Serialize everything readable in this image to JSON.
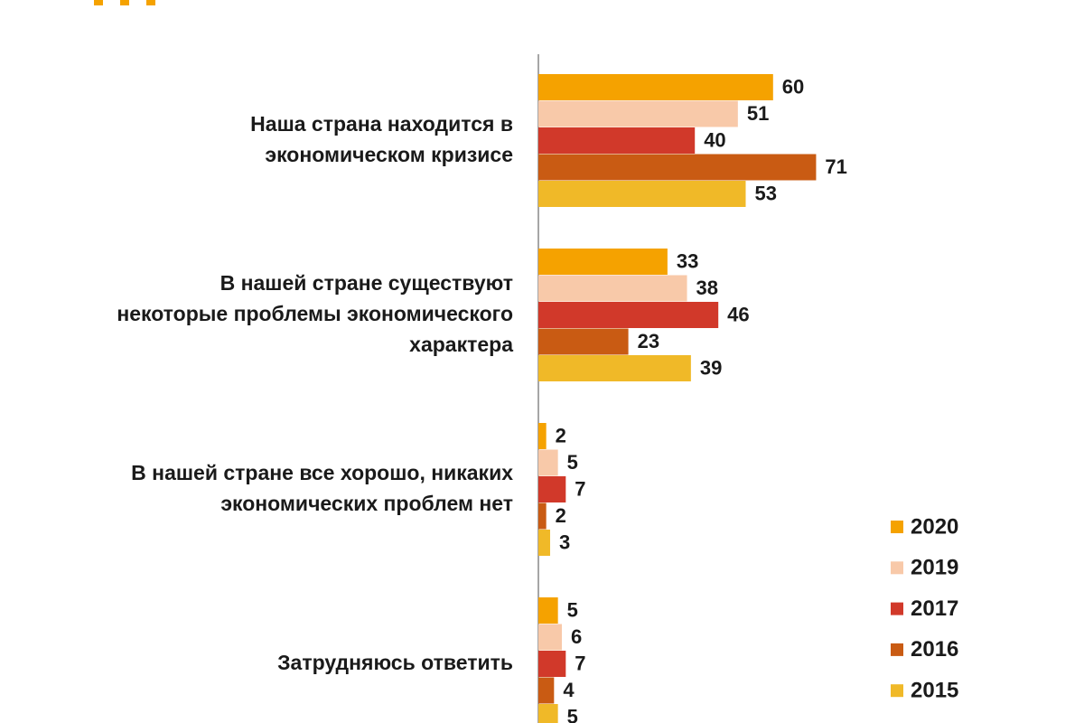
{
  "chart_data": {
    "type": "bar",
    "orientation": "horizontal",
    "categories": [
      [
        "Наша страна находится в",
        "экономическом кризисе"
      ],
      [
        "В нашей стране существуют",
        "некоторые проблемы экономического",
        "характера"
      ],
      [
        "В нашей стране все хорошо, никаких",
        "экономических проблем нет"
      ],
      [
        "Затрудняюсь ответить"
      ]
    ],
    "series": [
      {
        "name": "2020",
        "color": "#f5a200",
        "values": [
          60,
          33,
          2,
          5
        ]
      },
      {
        "name": "2019",
        "color": "#f8c9a9",
        "values": [
          51,
          38,
          5,
          6
        ]
      },
      {
        "name": "2017",
        "color": "#d1392a",
        "values": [
          40,
          46,
          7,
          7
        ]
      },
      {
        "name": "2016",
        "color": "#c95b13",
        "values": [
          71,
          23,
          2,
          4
        ]
      },
      {
        "name": "2015",
        "color": "#f0b928",
        "values": [
          53,
          39,
          3,
          5
        ]
      }
    ]
  }
}
